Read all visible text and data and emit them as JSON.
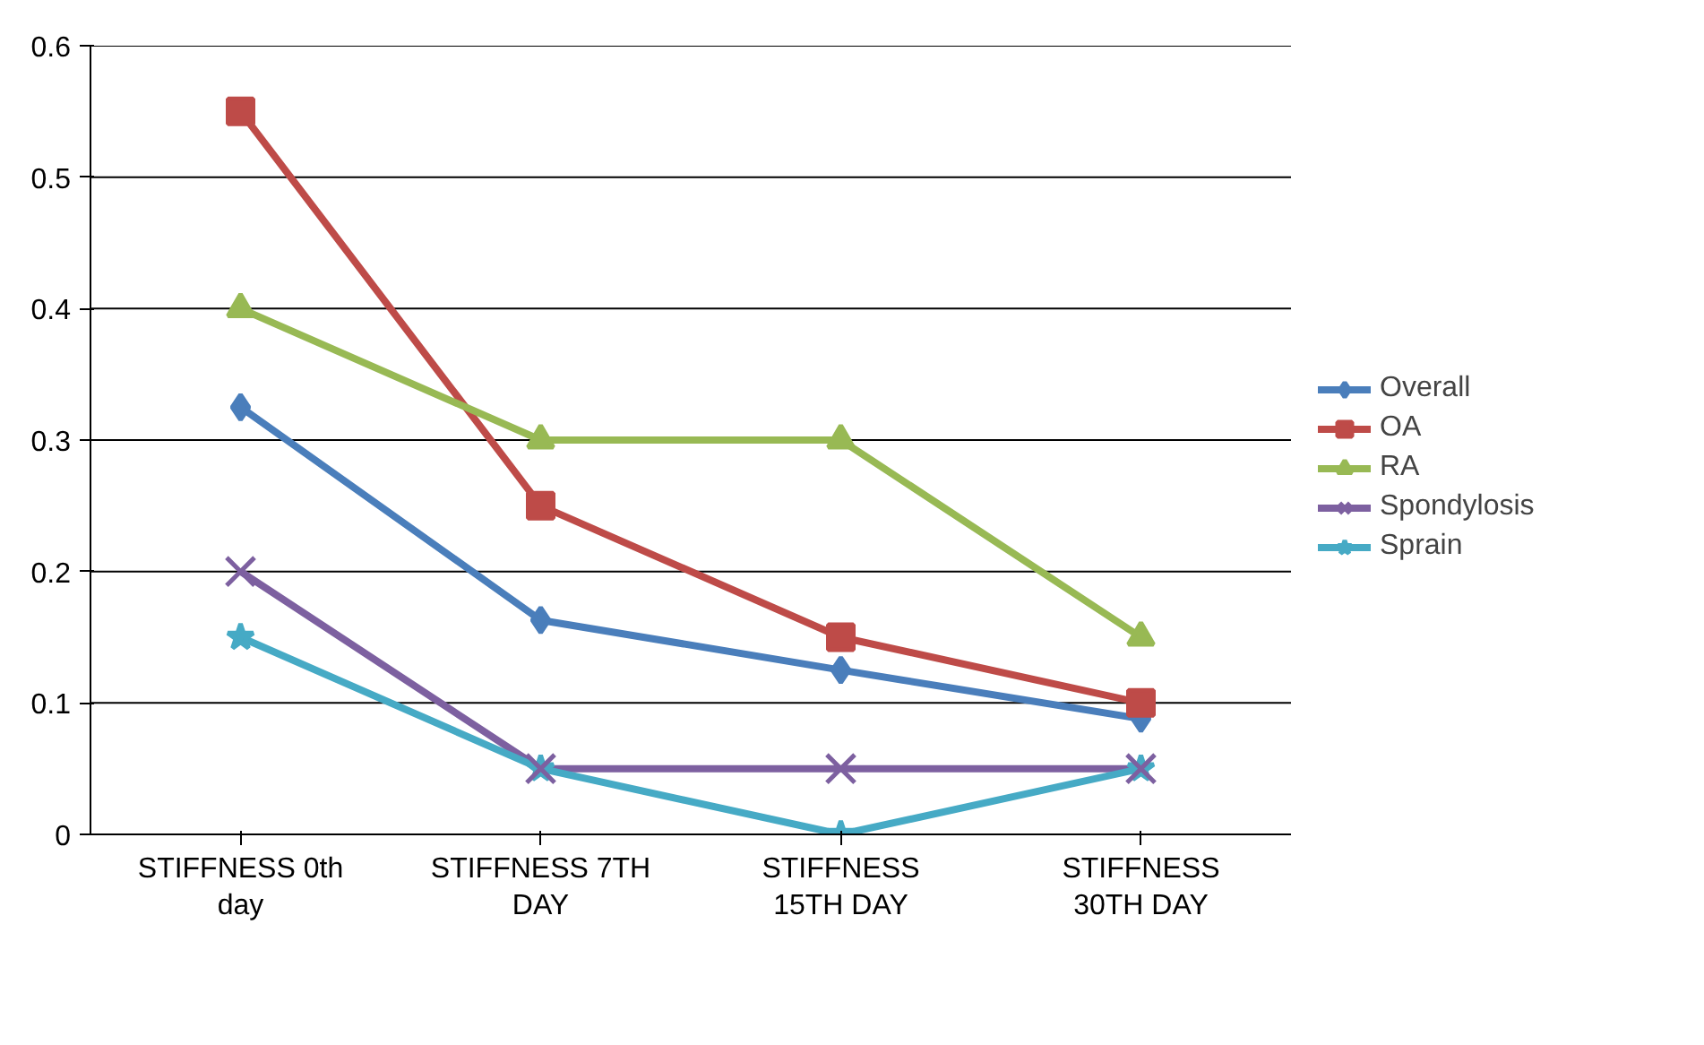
{
  "chart_data": {
    "type": "line",
    "categories": [
      "STIFFNESS 0th day",
      "STIFFNESS 7TH DAY",
      "STIFFNESS 15TH DAY",
      "STIFFNESS 30TH DAY"
    ],
    "ylim": [
      0,
      0.6
    ],
    "yticks": [
      0,
      0.1,
      0.2,
      0.3,
      0.4,
      0.5,
      0.6
    ],
    "grid": "y",
    "legend": "right",
    "line_style": "solid",
    "series": [
      {
        "name": "Overall",
        "color": "#4a7ebb",
        "marker": "diamond",
        "values": [
          0.325,
          0.163,
          0.125,
          0.088
        ]
      },
      {
        "name": "OA",
        "color": "#be4b48",
        "marker": "square",
        "values": [
          0.55,
          0.25,
          0.15,
          0.1
        ]
      },
      {
        "name": "RA",
        "color": "#98b954",
        "marker": "triangle",
        "values": [
          0.4,
          0.3,
          0.3,
          0.15
        ]
      },
      {
        "name": "Spondylosis",
        "color": "#7d60a0",
        "marker": "cross",
        "values": [
          0.2,
          0.05,
          0.05,
          0.05
        ]
      },
      {
        "name": "Sprain",
        "color": "#46aac5",
        "marker": "star",
        "values": [
          0.15,
          0.05,
          0,
          0.05
        ]
      }
    ]
  }
}
